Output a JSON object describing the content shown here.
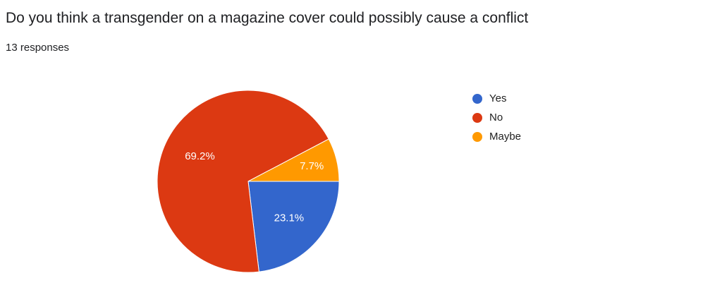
{
  "header": {
    "title": "Do you think a transgender on a magazine cover could possibly cause a conflict",
    "responses": "13 responses"
  },
  "chart_data": {
    "type": "pie",
    "categories": [
      "Yes",
      "No",
      "Maybe"
    ],
    "values": [
      23.1,
      69.2,
      7.7
    ],
    "labels": [
      "23.1%",
      "69.2%",
      "7.7%"
    ],
    "colors": [
      "#3366cc",
      "#dc3912",
      "#ff9900"
    ],
    "legend_position": "right"
  }
}
